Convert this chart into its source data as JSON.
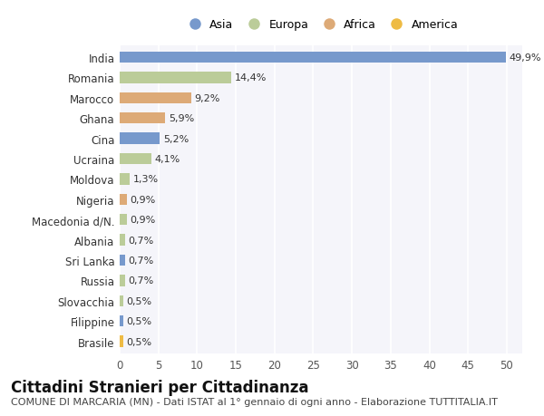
{
  "countries": [
    "India",
    "Romania",
    "Marocco",
    "Ghana",
    "Cina",
    "Ucraina",
    "Moldova",
    "Nigeria",
    "Macedonia d/N.",
    "Albania",
    "Sri Lanka",
    "Russia",
    "Slovacchia",
    "Filippine",
    "Brasile"
  ],
  "values": [
    49.9,
    14.4,
    9.2,
    5.9,
    5.2,
    4.1,
    1.3,
    0.9,
    0.9,
    0.7,
    0.7,
    0.7,
    0.5,
    0.5,
    0.5
  ],
  "labels": [
    "49,9%",
    "14,4%",
    "9,2%",
    "5,9%",
    "5,2%",
    "4,1%",
    "1,3%",
    "0,9%",
    "0,9%",
    "0,7%",
    "0,7%",
    "0,7%",
    "0,5%",
    "0,5%",
    "0,5%"
  ],
  "colors": [
    "#7799cc",
    "#bbcc99",
    "#ddaa77",
    "#ddaa77",
    "#7799cc",
    "#bbcc99",
    "#bbcc99",
    "#ddaa77",
    "#bbcc99",
    "#bbcc99",
    "#7799cc",
    "#bbcc99",
    "#bbcc99",
    "#7799cc",
    "#eebb44"
  ],
  "legend_labels": [
    "Asia",
    "Europa",
    "Africa",
    "America"
  ],
  "legend_colors": [
    "#7799cc",
    "#bbcc99",
    "#ddaa77",
    "#eebb44"
  ],
  "title": "Cittadini Stranieri per Cittadinanza",
  "subtitle": "COMUNE DI MARCARIA (MN) - Dati ISTAT al 1° gennaio di ogni anno - Elaborazione TUTTITALIA.IT",
  "xlim": [
    0,
    52
  ],
  "xticks": [
    0,
    5,
    10,
    15,
    20,
    25,
    30,
    35,
    40,
    45,
    50
  ],
  "background_color": "#ffffff",
  "plot_bg_color": "#f5f5fa",
  "bar_height": 0.55,
  "title_fontsize": 12,
  "subtitle_fontsize": 8,
  "tick_fontsize": 8.5,
  "label_fontsize": 8
}
